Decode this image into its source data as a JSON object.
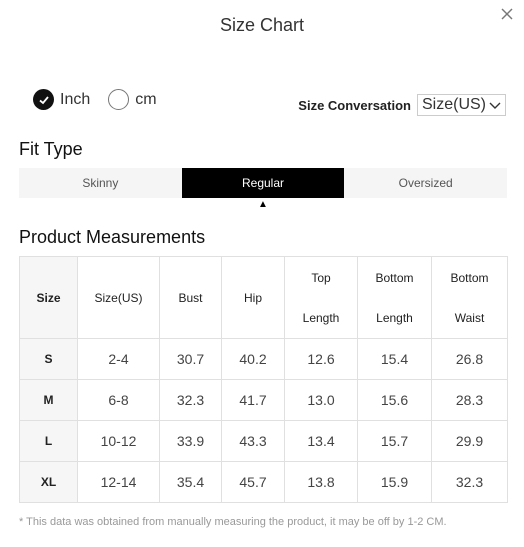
{
  "dialog": {
    "title": "Size Chart",
    "close_icon": "close-icon"
  },
  "units": {
    "options": [
      {
        "label": "Inch",
        "selected": true
      },
      {
        "label": "cm",
        "selected": false
      }
    ]
  },
  "size_conversion": {
    "label": "Size Conversation",
    "value": "Size(US)"
  },
  "fit_type": {
    "heading": "Fit Type",
    "options": [
      "Skinny",
      "Regular",
      "Oversized"
    ],
    "selected": "Regular"
  },
  "measurements": {
    "heading": "Product Measurements",
    "columns": [
      {
        "l1": "Size",
        "l2": ""
      },
      {
        "l1": "Size(US)",
        "l2": ""
      },
      {
        "l1": "Bust",
        "l2": ""
      },
      {
        "l1": "Hip",
        "l2": ""
      },
      {
        "l1": "Top",
        "l2": "Length"
      },
      {
        "l1": "Bottom",
        "l2": "Length"
      },
      {
        "l1": "Bottom",
        "l2": "Waist"
      }
    ],
    "rows": [
      [
        "S",
        "2-4",
        "30.7",
        "40.2",
        "12.6",
        "15.4",
        "26.8"
      ],
      [
        "M",
        "6-8",
        "32.3",
        "41.7",
        "13.0",
        "15.6",
        "28.3"
      ],
      [
        "L",
        "10-12",
        "33.9",
        "43.3",
        "13.4",
        "15.7",
        "29.9"
      ],
      [
        "XL",
        "12-14",
        "35.4",
        "45.7",
        "13.8",
        "15.9",
        "32.3"
      ]
    ]
  },
  "footnote": "* This data was obtained from manually measuring the product, it may be off by 1-2 CM."
}
